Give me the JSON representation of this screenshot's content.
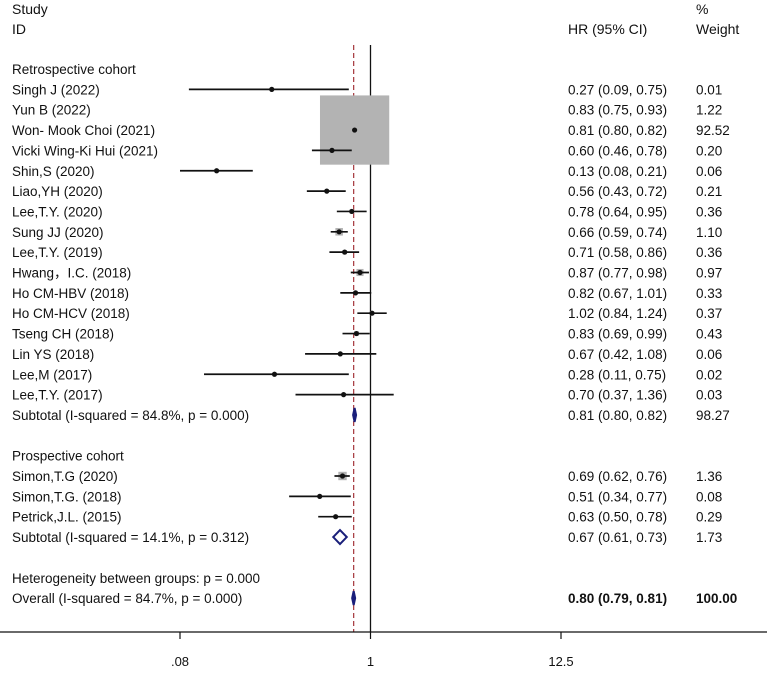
{
  "chart_data": {
    "type": "forest",
    "x_scale": "log",
    "xlim": [
      0.08,
      12.5
    ],
    "xticks": [
      {
        "value": 0.08,
        "label": ".08"
      },
      {
        "value": 1,
        "label": "1"
      },
      {
        "value": 12.5,
        "label": "12.5"
      }
    ],
    "reference_line": 1,
    "overall_line": 0.8,
    "headers": {
      "study_line1": "Study",
      "study_line2": "ID",
      "effect": "HR (95% CI)",
      "weight_line1": "%",
      "weight_line2": "Weight"
    },
    "rows": [
      {
        "kind": "group",
        "label": "Retrospective  cohort"
      },
      {
        "kind": "study",
        "label": "Singh J (2022)",
        "est": 0.27,
        "lo": 0.09,
        "hi": 0.75,
        "ci_text": "0.27 (0.09, 0.75)",
        "weight": 0.01,
        "weight_text": "0.01"
      },
      {
        "kind": "study",
        "label": "Yun B (2022)",
        "est": 0.83,
        "lo": 0.75,
        "hi": 0.93,
        "ci_text": "0.83 (0.75, 0.93)",
        "weight": 1.22,
        "weight_text": "1.22"
      },
      {
        "kind": "study",
        "label": "Won- Mook Choi (2021)",
        "est": 0.81,
        "lo": 0.8,
        "hi": 0.82,
        "ci_text": "0.81 (0.80, 0.82)",
        "weight": 92.52,
        "weight_text": "92.52"
      },
      {
        "kind": "study",
        "label": "Vicki Wing-Ki Hui (2021)",
        "est": 0.6,
        "lo": 0.46,
        "hi": 0.78,
        "ci_text": "0.60 (0.46, 0.78)",
        "weight": 0.2,
        "weight_text": "0.20"
      },
      {
        "kind": "study",
        "label": "Shin,S (2020)",
        "est": 0.13,
        "lo": 0.08,
        "hi": 0.21,
        "ci_text": "0.13 (0.08, 0.21)",
        "weight": 0.06,
        "weight_text": "0.06"
      },
      {
        "kind": "study",
        "label": "Liao,YH (2020)",
        "est": 0.56,
        "lo": 0.43,
        "hi": 0.72,
        "ci_text": "0.56 (0.43, 0.72)",
        "weight": 0.21,
        "weight_text": "0.21"
      },
      {
        "kind": "study",
        "label": "Lee,T.Y. (2020)",
        "est": 0.78,
        "lo": 0.64,
        "hi": 0.95,
        "ci_text": "0.78 (0.64, 0.95)",
        "weight": 0.36,
        "weight_text": "0.36"
      },
      {
        "kind": "study",
        "label": "Sung JJ (2020)",
        "est": 0.66,
        "lo": 0.59,
        "hi": 0.74,
        "ci_text": "0.66 (0.59, 0.74)",
        "weight": 1.1,
        "weight_text": "1.10"
      },
      {
        "kind": "study",
        "label": "Lee,T.Y. (2019)",
        "est": 0.71,
        "lo": 0.58,
        "hi": 0.86,
        "ci_text": "0.71 (0.58, 0.86)",
        "weight": 0.36,
        "weight_text": "0.36"
      },
      {
        "kind": "study",
        "label": "Hwang，I.C. (2018)",
        "est": 0.87,
        "lo": 0.77,
        "hi": 0.98,
        "ci_text": "0.87 (0.77, 0.98)",
        "weight": 0.97,
        "weight_text": "0.97"
      },
      {
        "kind": "study",
        "label": "Ho CM-HBV (2018)",
        "est": 0.82,
        "lo": 0.67,
        "hi": 1.01,
        "ci_text": "0.82 (0.67, 1.01)",
        "weight": 0.33,
        "weight_text": "0.33"
      },
      {
        "kind": "study",
        "label": "Ho CM-HCV (2018)",
        "est": 1.02,
        "lo": 0.84,
        "hi": 1.24,
        "ci_text": "1.02 (0.84, 1.24)",
        "weight": 0.37,
        "weight_text": "0.37"
      },
      {
        "kind": "study",
        "label": "Tseng CH (2018)",
        "est": 0.83,
        "lo": 0.69,
        "hi": 0.99,
        "ci_text": "0.83 (0.69, 0.99)",
        "weight": 0.43,
        "weight_text": "0.43"
      },
      {
        "kind": "study",
        "label": "Lin YS (2018)",
        "est": 0.67,
        "lo": 0.42,
        "hi": 1.08,
        "ci_text": "0.67 (0.42, 1.08)",
        "weight": 0.06,
        "weight_text": "0.06"
      },
      {
        "kind": "study",
        "label": "Lee,M (2017)",
        "est": 0.28,
        "lo": 0.11,
        "hi": 0.75,
        "ci_text": "0.28 (0.11, 0.75)",
        "weight": 0.02,
        "weight_text": "0.02"
      },
      {
        "kind": "study",
        "label": "Lee,T.Y. (2017)",
        "est": 0.7,
        "lo": 0.37,
        "hi": 1.36,
        "ci_text": "0.70 (0.37, 1.36)",
        "weight": 0.03,
        "weight_text": "0.03"
      },
      {
        "kind": "subtotal",
        "label": "Subtotal  (I-squared = 84.8%, p = 0.000)",
        "est": 0.81,
        "lo": 0.8,
        "hi": 0.82,
        "ci_text": "0.81 (0.80, 0.82)",
        "weight": 98.27,
        "weight_text": "98.27"
      },
      {
        "kind": "blank"
      },
      {
        "kind": "group",
        "label": "Prospective cohort"
      },
      {
        "kind": "study",
        "label": "Simon,T.G (2020)",
        "est": 0.69,
        "lo": 0.62,
        "hi": 0.76,
        "ci_text": "0.69 (0.62, 0.76)",
        "weight": 1.36,
        "weight_text": "1.36"
      },
      {
        "kind": "study",
        "label": "Simon,T.G. (2018)",
        "est": 0.51,
        "lo": 0.34,
        "hi": 0.77,
        "ci_text": "0.51 (0.34, 0.77)",
        "weight": 0.08,
        "weight_text": "0.08"
      },
      {
        "kind": "study",
        "label": "Petrick,J.L. (2015)",
        "est": 0.63,
        "lo": 0.5,
        "hi": 0.78,
        "ci_text": "0.63 (0.50, 0.78)",
        "weight": 0.29,
        "weight_text": "0.29"
      },
      {
        "kind": "subtotal",
        "label": "Subtotal  (I-squared = 14.1%, p = 0.312)",
        "est": 0.67,
        "lo": 0.61,
        "hi": 0.73,
        "ci_text": "0.67 (0.61, 0.73)",
        "weight": 1.73,
        "weight_text": "1.73"
      },
      {
        "kind": "blank"
      },
      {
        "kind": "note",
        "label": "Heterogeneity between groups: p = 0.000"
      },
      {
        "kind": "overall",
        "label": "Overall  (I-squared = 84.7%, p = 0.000)",
        "est": 0.8,
        "lo": 0.79,
        "hi": 0.81,
        "ci_text": "0.80 (0.79, 0.81)",
        "weight": 100.0,
        "weight_text": "100.00"
      }
    ],
    "colors": {
      "ink": "#111111",
      "box": "#b3b3b3",
      "diamond": "#1a1f7a",
      "dashed": "#a4343a"
    }
  }
}
